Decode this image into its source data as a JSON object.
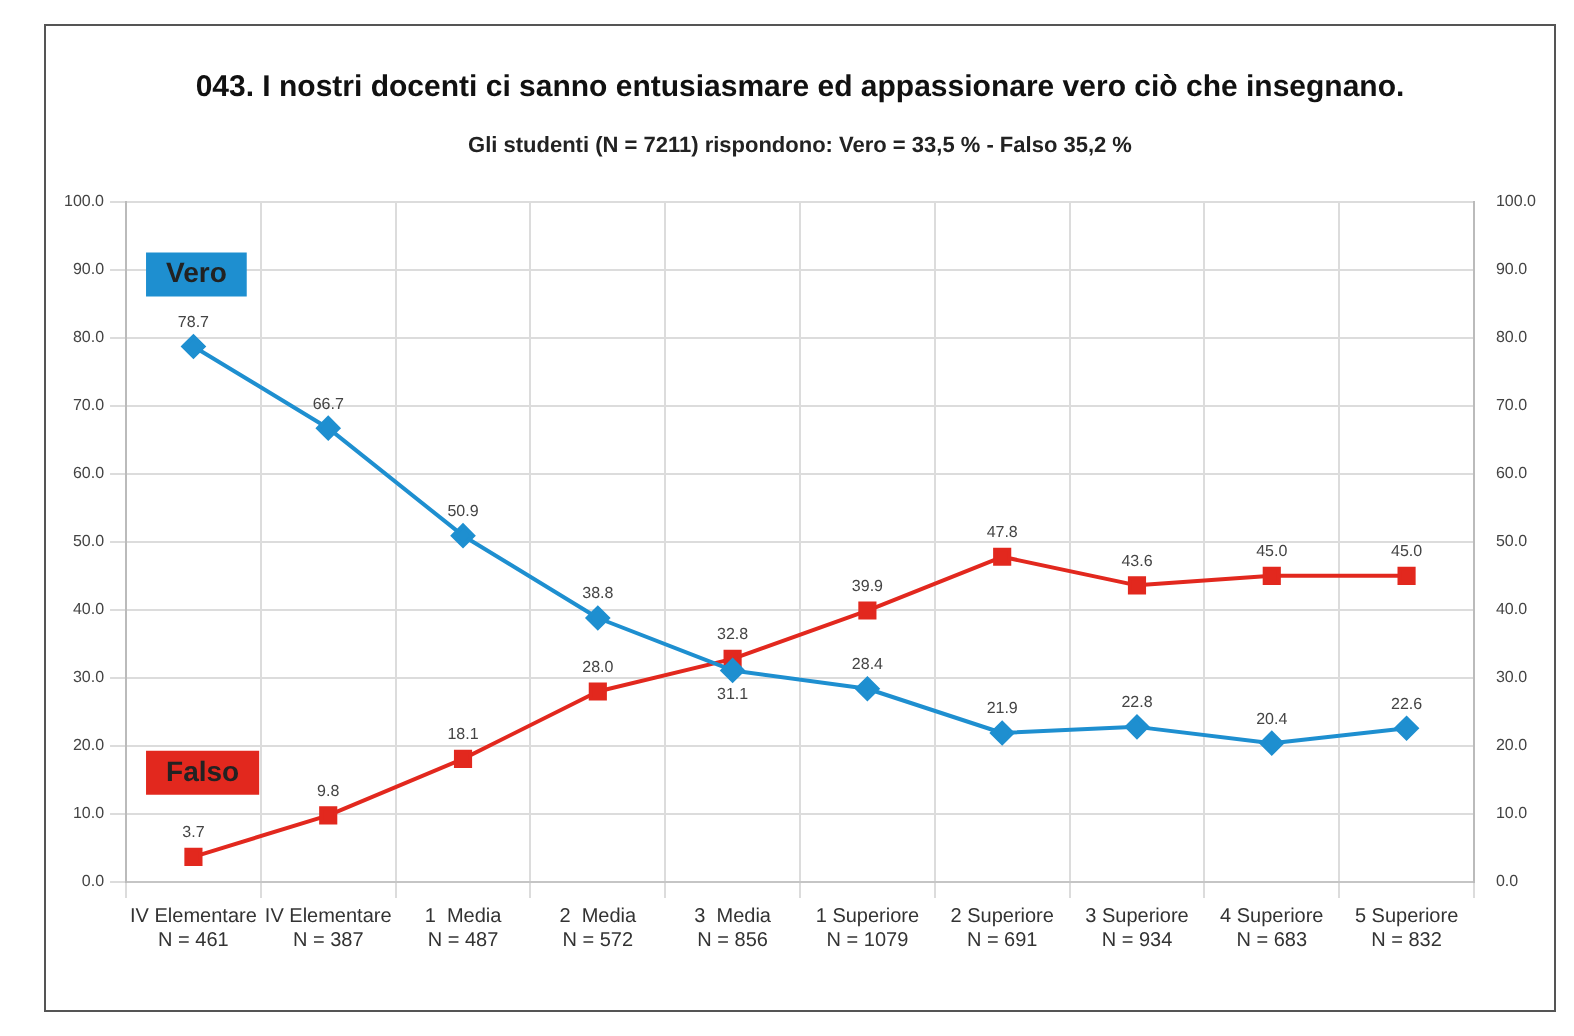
{
  "chart_data": {
    "type": "line",
    "title": "043. I nostri docenti ci sanno entusiasmare ed appassionare vero ciò che insegnano.",
    "subtitle": "Gli studenti (N = 7211) rispondono:  Vero = 33,5 % - Falso 35,2 %",
    "categories": [
      "IV Elementare\nN = 461",
      "IV Elementare\nN = 387",
      "1  Media\nN = 487",
      "2  Media\nN = 572",
      "3  Media\nN = 856",
      "1 Superiore\nN = 1079",
      "2 Superiore\nN = 691",
      "3 Superiore\nN = 934",
      "4 Superiore\nN = 683",
      "5 Superiore\nN = 832"
    ],
    "series": [
      {
        "name": "Vero",
        "color": "#1e8fd0",
        "marker": "diamond",
        "values": [
          78.7,
          66.7,
          50.9,
          38.8,
          31.1,
          28.4,
          21.9,
          22.8,
          20.4,
          22.6
        ],
        "value_labels": [
          "78.7",
          "66.7",
          "50.9",
          "38.8",
          "31.1",
          "28.4",
          "21.9",
          "22.8",
          "20.4",
          "22.6"
        ]
      },
      {
        "name": "Falso",
        "color": "#e2281e",
        "marker": "square",
        "values": [
          3.7,
          9.8,
          18.1,
          28.0,
          32.8,
          39.9,
          47.8,
          43.6,
          45.0,
          45.0
        ],
        "value_labels": [
          "3.7",
          "9.8",
          "18.1",
          "28.0",
          "32.8",
          "39.9",
          "47.8",
          "43.6",
          "45.0",
          "45.0"
        ]
      }
    ],
    "ylim": [
      0,
      100
    ],
    "yticks": [
      {
        "value": 0,
        "label": "0.0"
      },
      {
        "value": 10,
        "label": "10.0"
      },
      {
        "value": 20,
        "label": "20.0"
      },
      {
        "value": 30,
        "label": "30.0"
      },
      {
        "value": 40,
        "label": "40.0"
      },
      {
        "value": 50,
        "label": "50.0"
      },
      {
        "value": 60,
        "label": "60.0"
      },
      {
        "value": 70,
        "label": "70.0"
      },
      {
        "value": 80,
        "label": "80.0"
      },
      {
        "value": 90,
        "label": "90.0"
      },
      {
        "value": 100,
        "label": "100.0"
      }
    ],
    "y2lim": [
      0,
      100
    ],
    "y2ticks": [
      {
        "value": 0,
        "label": "0.0"
      },
      {
        "value": 10,
        "label": "10.0"
      },
      {
        "value": 20,
        "label": "20.0"
      },
      {
        "value": 30,
        "label": "30.0"
      },
      {
        "value": 40,
        "label": "40.0"
      },
      {
        "value": 50,
        "label": "50.0"
      },
      {
        "value": 60,
        "label": "60.0"
      },
      {
        "value": 70,
        "label": "70.0"
      },
      {
        "value": 80,
        "label": "80.0"
      },
      {
        "value": 90,
        "label": "90.0"
      },
      {
        "value": 100,
        "label": "100.0"
      }
    ],
    "grid": true,
    "legend": false
  }
}
